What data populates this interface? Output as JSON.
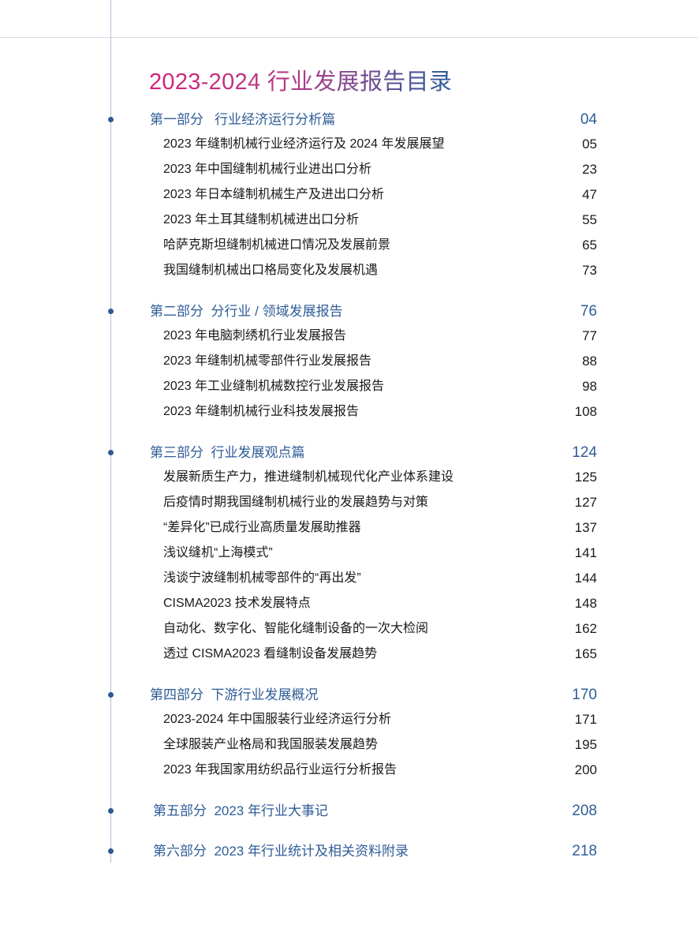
{
  "title": "2023-2024 行业发展报告目录",
  "sections": [
    {
      "label": "第一部分   行业经济运行分析篇",
      "page": "04",
      "items": [
        {
          "label": "2023 年缝制机械行业经济运行及 2024 年发展展望",
          "page": "05"
        },
        {
          "label": "2023 年中国缝制机械行业进出口分析",
          "page": "23"
        },
        {
          "label": "2023 年日本缝制机械生产及进出口分析",
          "page": "47"
        },
        {
          "label": "2023 年土耳其缝制机械进出口分析",
          "page": "55"
        },
        {
          "label": "哈萨克斯坦缝制机械进口情况及发展前景",
          "page": "65"
        },
        {
          "label": "我国缝制机械出口格局变化及发展机遇",
          "page": "73"
        }
      ]
    },
    {
      "label": "第二部分  分行业 / 领域发展报告",
      "page": "76",
      "items": [
        {
          "label": "2023 年电脑刺绣机行业发展报告",
          "page": "77"
        },
        {
          "label": "2023 年缝制机械零部件行业发展报告",
          "page": "88"
        },
        {
          "label": "2023 年工业缝制机械数控行业发展报告",
          "page": "98"
        },
        {
          "label": "2023 年缝制机械行业科技发展报告",
          "page": "108"
        }
      ]
    },
    {
      "label": "第三部分  行业发展观点篇",
      "page": "124",
      "items": [
        {
          "label": "发展新质生产力，推进缝制机械现代化产业体系建设",
          "page": "125"
        },
        {
          "label": "后疫情时期我国缝制机械行业的发展趋势与对策",
          "page": "127"
        },
        {
          "label": "“差异化”已成行业高质量发展助推器",
          "page": "137"
        },
        {
          "label": "浅议缝机“上海模式”",
          "page": "141"
        },
        {
          "label": "浅谈宁波缝制机械零部件的“再出发”",
          "page": "144"
        },
        {
          "label": "CISMA2023 技术发展特点",
          "page": "148"
        },
        {
          "label": "自动化、数字化、智能化缝制设备的一次大检阅",
          "page": "162"
        },
        {
          "label": "透过 CISMA2023 看缝制设备发展趋势",
          "page": "165"
        }
      ]
    },
    {
      "label": "第四部分  下游行业发展概况",
      "page": "170",
      "items": [
        {
          "label": "2023-2024 年中国服装行业经济运行分析",
          "page": "171"
        },
        {
          "label": "全球服装产业格局和我国服装发展趋势",
          "page": "195"
        },
        {
          "label": "2023 年我国家用纺织品行业运行分析报告",
          "page": "200"
        }
      ]
    },
    {
      "label": "第五部分  2023 年行业大事记",
      "page": "208",
      "items": []
    },
    {
      "label": "第六部分  2023 年行业统计及相关资料附录",
      "page": "218",
      "items": []
    }
  ]
}
